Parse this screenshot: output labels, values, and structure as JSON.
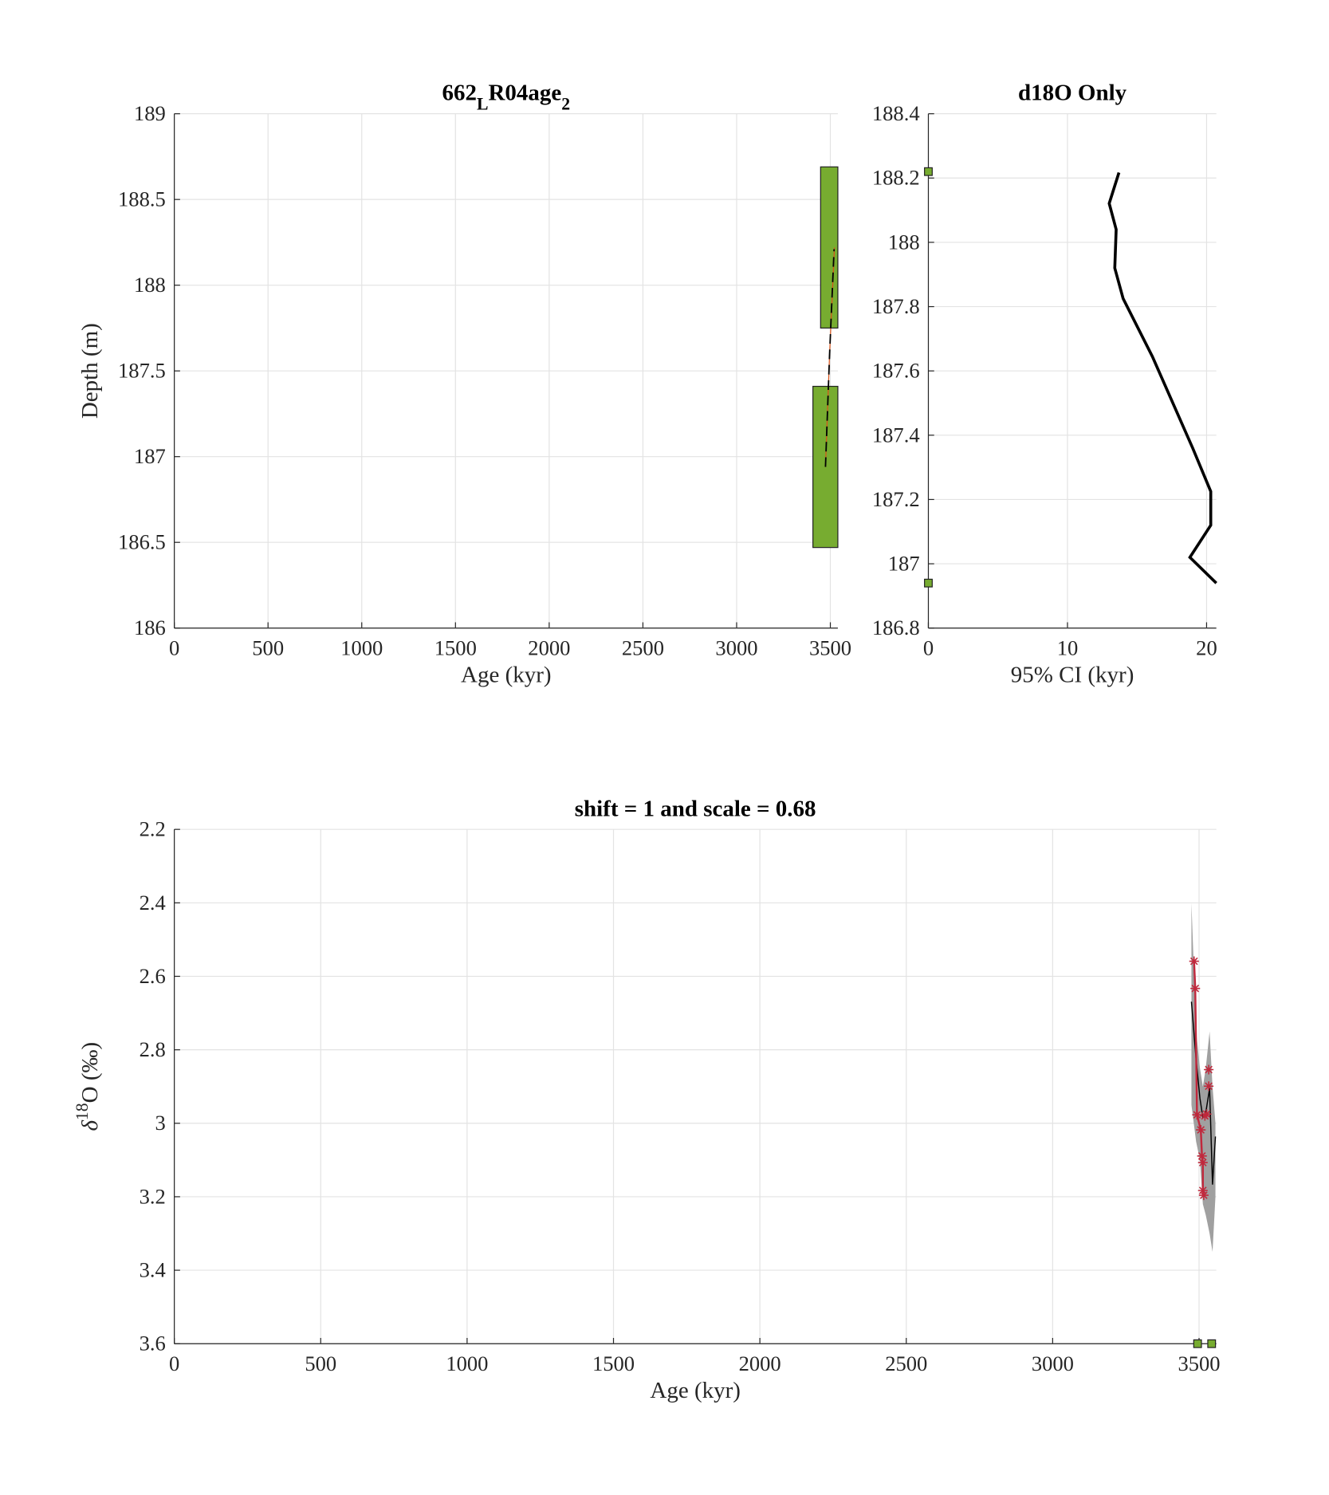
{
  "chart_data": [
    {
      "type": "line",
      "title_parts": [
        {
          "text": "662"
        },
        {
          "text": "L",
          "script": "sub"
        },
        {
          "text": "R04age"
        },
        {
          "text": "2",
          "script": "sub"
        }
      ],
      "xlabel_parts": [
        {
          "text": "Age (kyr)"
        }
      ],
      "ylabel_parts": [
        {
          "text": "Depth (m)"
        }
      ],
      "xlim": [
        0,
        3540
      ],
      "xticks": [
        0,
        500,
        1000,
        1500,
        2000,
        2500,
        3000,
        3500
      ],
      "ylim": [
        186,
        189
      ],
      "yticks": [
        186,
        186.5,
        187,
        187.5,
        188,
        188.5,
        189
      ],
      "grid": true,
      "ranges": [
        {
          "color": "#77ac30",
          "x": [
            3448,
            3540
          ],
          "y": [
            187.75,
            188.69
          ]
        },
        {
          "color": "#77ac30",
          "x": [
            3407,
            3540
          ],
          "y": [
            186.47,
            187.41
          ]
        }
      ],
      "series": [
        {
          "color": "#d95319",
          "width": 1,
          "x": [
            3474,
            3496,
            3522
          ],
          "values": [
            186.94,
            187.6,
            188.22
          ]
        },
        {
          "color": "#000000",
          "width": 1.5,
          "dash": true,
          "x": [
            3474,
            3496,
            3520
          ],
          "values": [
            186.94,
            187.6,
            188.21
          ]
        }
      ]
    },
    {
      "type": "line",
      "title_parts": [
        {
          "text": "d18O Only"
        }
      ],
      "xlabel_parts": [
        {
          "text": "95% CI (kyr)"
        }
      ],
      "xlim": [
        0,
        20.7
      ],
      "xticks": [
        0,
        10,
        20
      ],
      "ylim": [
        186.8,
        188.4
      ],
      "yticks": [
        186.8,
        187,
        187.2,
        187.4,
        187.6,
        187.8,
        188,
        188.2,
        188.4
      ],
      "grid": true,
      "series": [
        {
          "color": "#000000",
          "width": 3,
          "x": [
            13.7,
            13.0,
            13.5,
            13.4,
            14.0,
            16.1,
            19.0,
            20.3,
            20.3,
            18.8,
            20.7
          ],
          "values": [
            188.217,
            188.121,
            188.04,
            187.92,
            187.825,
            187.645,
            187.36,
            187.225,
            187.12,
            187.02,
            186.94
          ]
        }
      ],
      "markers": [
        {
          "shape": "square",
          "color": "#77ac30",
          "x": [
            0,
            0
          ],
          "values": [
            188.22,
            186.94
          ]
        }
      ]
    },
    {
      "type": "line",
      "title_parts": [
        {
          "text": "shift = 1 and scale = 0.68"
        }
      ],
      "xlabel_parts": [
        {
          "text": "Age (kyr)"
        }
      ],
      "ylabel_parts": [
        {
          "text": "δ",
          "style": "italic"
        },
        {
          "text": "18",
          "script": "sup"
        },
        {
          "text": "O (‰)"
        }
      ],
      "xlim": [
        0,
        3559
      ],
      "xticks": [
        0,
        500,
        1000,
        1500,
        2000,
        2500,
        3000,
        3500
      ],
      "ylim": [
        2.2,
        3.6
      ],
      "yticks": [
        2.2,
        2.4,
        2.6,
        2.8,
        3,
        3.2,
        3.4,
        3.6
      ],
      "y_reversed": true,
      "grid": true,
      "band": {
        "color": "#a0a0a0",
        "x": [
          3474,
          3490,
          3503,
          3513,
          3523,
          3536,
          3546,
          3556
        ],
        "lower": [
          2.4,
          2.75,
          2.85,
          2.9,
          2.85,
          2.75,
          2.9,
          3.0
        ],
        "upper": [
          2.95,
          3.05,
          3.1,
          3.22,
          3.25,
          3.3,
          3.35,
          3.2
        ]
      },
      "series": [
        {
          "color": "#000000",
          "width": 1.2,
          "x": [
            3474,
            3490,
            3503,
            3513,
            3523,
            3536,
            3546,
            3556
          ],
          "values": [
            2.669,
            2.827,
            2.932,
            2.984,
            2.971,
            2.905,
            3.167,
            3.036
          ]
        },
        {
          "color": "#c0283c",
          "width": 2,
          "x": [
            3483,
            3487,
            3493,
            3506,
            3510,
            3513,
            3513,
            3516
          ],
          "values": [
            2.559,
            2.633,
            2.977,
            3.018,
            3.089,
            3.107,
            3.183,
            3.196
          ]
        }
      ],
      "markers": [
        {
          "shape": "star",
          "color": "#c0283c",
          "x": [
            3483,
            3487,
            3493,
            3506,
            3510,
            3513,
            3513,
            3516,
            3520,
            3526,
            3533,
            3533
          ],
          "values": [
            2.559,
            2.633,
            2.977,
            3.018,
            3.089,
            3.107,
            3.183,
            3.196,
            2.98,
            2.975,
            2.899,
            2.854
          ]
        },
        {
          "shape": "square",
          "color": "#77ac30",
          "x": [
            3495,
            3543
          ],
          "values": [
            3.6,
            3.6
          ]
        }
      ]
    }
  ]
}
